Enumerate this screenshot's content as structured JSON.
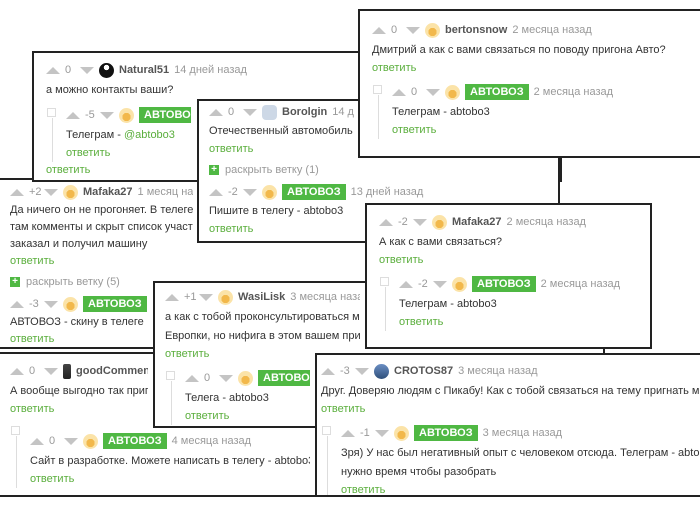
{
  "reply_label": "ответить",
  "colors": {
    "badge": "#4fb843",
    "reply_link": "#5aae3c",
    "meta": "#999999"
  },
  "panels": [
    {
      "id": "goodcommentator",
      "comments": [
        {
          "rating": "0",
          "author": "goodCommentator",
          "avatar": "man",
          "time": "",
          "lines": [
            "А вообще выгодно так пригоняя"
          ],
          "reply": true
        },
        {
          "nested": true,
          "rating": "0",
          "author": "АВТОВОЗ",
          "badge": true,
          "avatar": "orange",
          "time": "4 месяца назад",
          "lines": [
            "Сайт в разработке. Можете написать в телегу - abtobo3"
          ],
          "reply": true
        }
      ]
    },
    {
      "id": "mafaka27-left",
      "comments": [
        {
          "rating": "+2",
          "author": "Mafaka27",
          "avatar": "orange",
          "time": "1 месяц назад",
          "lines": [
            "Да ничего он не прогоняет. В телеге сделал",
            "там комменты и скрыт список участников",
            "заказал и получил машину"
          ],
          "reply": true,
          "expand": "раскрыть ветку (5)"
        },
        {
          "rating": "-3",
          "author": "АВТОВОЗ",
          "badge": true,
          "avatar": "orange",
          "time": "1 месяц назад",
          "lines": [
            "АВТОВОЗ -  скину в телеге"
          ],
          "reply": true
        }
      ]
    },
    {
      "id": "natural51",
      "comments": [
        {
          "rating": "0",
          "author": "Natural51",
          "avatar": "dark",
          "time": "14 дней назад",
          "lines": [
            "а можно контакты ваши?"
          ],
          "reply": false
        },
        {
          "nested": true,
          "rating": "-5",
          "author": "АВТОВОЗ",
          "badge": true,
          "avatar": "orange",
          "time": "13 дней назад",
          "lines": [
            "Телеграм - "
          ],
          "handle": "@abtobo3",
          "reply": true,
          "extra_reply": true
        }
      ]
    },
    {
      "id": "borolgin",
      "comments": [
        {
          "rating": "0",
          "author": "Borolgin",
          "avatar": "robot",
          "time": "14 дней назад",
          "lines": [
            "Отечественный автомобиль \"Жигули\""
          ],
          "reply": true,
          "expand": "раскрыть ветку (1)"
        },
        {
          "rating": "-2",
          "author": "АВТОВОЗ",
          "badge": true,
          "avatar": "orange",
          "time": "13 дней назад",
          "lines": [
            "Пишите в телегу - abtobo3"
          ],
          "reply": true
        }
      ]
    },
    {
      "id": "wasilisk",
      "comments": [
        {
          "rating": "+1",
          "author": "WasiLisk",
          "avatar": "orange",
          "time": "3 месяца назад",
          "lines": [
            "а как с тобой проконсультироваться можно,",
            "Европки, но нифига в этом вашем привозе н"
          ],
          "reply": true
        },
        {
          "nested": true,
          "rating": "0",
          "author": "АВТОВОЗ",
          "badge": true,
          "avatar": "orange",
          "time": "3 месяца назад",
          "lines": [
            "Телега - abtobo3"
          ],
          "reply": true
        }
      ]
    },
    {
      "id": "bertonsnow",
      "comments": [
        {
          "rating": "0",
          "author": "bertonsnow",
          "avatar": "orange",
          "time": "2 месяца назад",
          "lines": [
            "Дмитрий а как с вами связаться по поводу пригона Авто?"
          ],
          "reply": true
        },
        {
          "nested": true,
          "rating": "0",
          "author": "АВТОВОЗ",
          "badge": true,
          "avatar": "orange",
          "time": "2 месяца назад",
          "lines": [
            "Телеграм -  abtobo3"
          ],
          "reply": true
        }
      ]
    },
    {
      "id": "mafaka27-right",
      "comments": [
        {
          "rating": "-2",
          "author": "Mafaka27",
          "avatar": "orange",
          "time": "2 месяца назад",
          "lines": [
            "А как с вами связаться?"
          ],
          "reply": true
        },
        {
          "nested": true,
          "rating": "-2",
          "author": "АВТОВОЗ",
          "badge": true,
          "avatar": "orange",
          "time": "2 месяца назад",
          "lines": [
            "Телеграм -  abtobo3"
          ],
          "reply": true
        }
      ]
    },
    {
      "id": "crotos87",
      "comments": [
        {
          "rating": "-3",
          "author": "CROTOS87",
          "avatar": "blue",
          "time": "3 месяца назад",
          "lines": [
            "Друг. Доверяю людям с Пикабу! Как с тобой связаться на тему пригнать машину?"
          ],
          "reply": true
        },
        {
          "nested": true,
          "rating": "-1",
          "author": "АВТОВОЗ",
          "badge": true,
          "avatar": "orange",
          "time": "3 месяца назад",
          "lines": [
            "Зря) У нас был негативный опыт с человеком отсюда. Телеграм -  abtobo3 но зая",
            "нужно время чтобы разобрать"
          ],
          "reply": true
        }
      ]
    }
  ]
}
